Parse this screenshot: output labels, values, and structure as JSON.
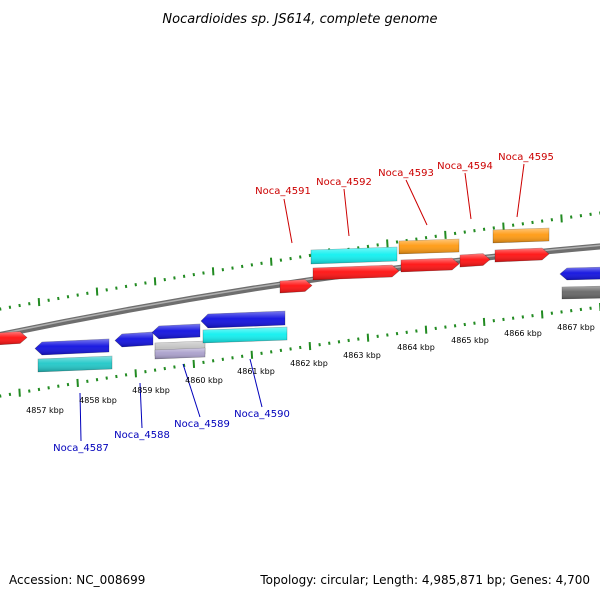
{
  "title": "Nocardioides sp. JS614, complete genome",
  "footer": {
    "accession": "Accession: NC_008699",
    "summary": "Topology: circular; Length: 4,985,871 bp; Genes: 4,700"
  },
  "colors": {
    "forward_label": "#cc0000",
    "reverse_label": "#0000bb",
    "backbone": "#808080",
    "tick": "#228b22",
    "red": "#ff1010",
    "blue": "#1010e0",
    "cyan": "#10f0f0",
    "teal": "#20c8c8",
    "orange": "#ff9a10",
    "gray": "#666666",
    "lilac": "#aaa0cc"
  },
  "scale_labels": [
    "4857 kbp",
    "4858 kbp",
    "4859 kbp",
    "4860 kbp",
    "4861 kbp",
    "4862 kbp",
    "4863 kbp",
    "4864 kbp",
    "4865 kbp",
    "4866 kbp",
    "4867 kbp"
  ],
  "gene_labels": {
    "forward": [
      "Noca_4591",
      "Noca_4592",
      "Noca_4593",
      "Noca_4594",
      "Noca_4595"
    ],
    "reverse": [
      "Noca_4587",
      "Noca_4588",
      "Noca_4589",
      "Noca_4590"
    ]
  }
}
